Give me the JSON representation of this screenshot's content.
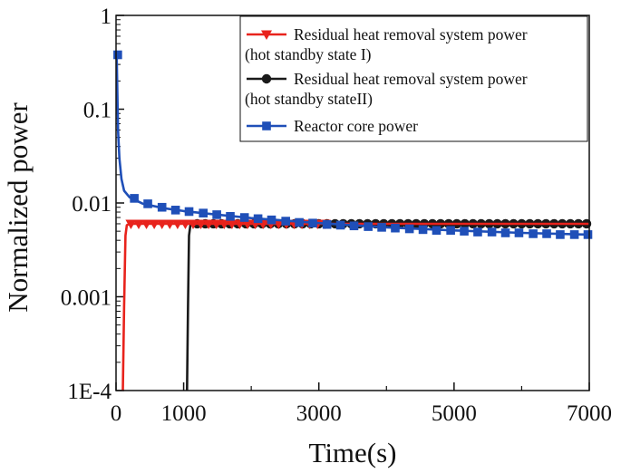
{
  "chart_data": {
    "type": "line",
    "xlabel": "Time(s)",
    "ylabel": "Normalized power",
    "xlim": [
      0,
      7000
    ],
    "ylim": [
      0.0001,
      1
    ],
    "yscale": "log",
    "grid": false,
    "legend_position": "top-right",
    "x_ticks": [
      0,
      1000,
      3000,
      5000,
      7000
    ],
    "x_tick_labels": [
      "0",
      "1000",
      "3000",
      "5000",
      "7000"
    ],
    "y_ticks": [
      0.0001,
      0.001,
      0.01,
      0.1,
      1
    ],
    "y_tick_labels": [
      "1E-4",
      "0.001",
      "0.01",
      "0.1",
      "1"
    ],
    "series": [
      {
        "name_lines": [
          "Residual heat removal system power",
          "(hot standby state I)"
        ],
        "color": "#e8231c",
        "marker": "triangle-down",
        "line": [
          [
            100,
            0.0001
          ],
          [
            120,
            0.0008
          ],
          [
            140,
            0.0045
          ],
          [
            160,
            0.0058
          ],
          [
            200,
            0.006
          ],
          [
            7000,
            0.006
          ]
        ],
        "markers": [
          [
            220,
            0.006
          ],
          [
            335,
            0.006
          ],
          [
            450,
            0.006
          ],
          [
            565,
            0.006
          ],
          [
            680,
            0.006
          ],
          [
            795,
            0.006
          ],
          [
            910,
            0.006
          ],
          [
            1025,
            0.006
          ],
          [
            1140,
            0.006
          ],
          [
            1255,
            0.006
          ],
          [
            1370,
            0.006
          ],
          [
            1485,
            0.006
          ],
          [
            1600,
            0.006
          ],
          [
            1715,
            0.006
          ],
          [
            1830,
            0.006
          ],
          [
            1945,
            0.006
          ],
          [
            2060,
            0.006
          ],
          [
            2175,
            0.006
          ],
          [
            2290,
            0.006
          ],
          [
            2405,
            0.006
          ],
          [
            2520,
            0.006
          ],
          [
            2635,
            0.006
          ],
          [
            2750,
            0.006
          ],
          [
            2865,
            0.006
          ],
          [
            2980,
            0.006
          ],
          [
            3095,
            0.006
          ]
        ]
      },
      {
        "name_lines": [
          "Residual heat removal system power",
          "(hot standby stateII)"
        ],
        "color": "#1a1a1a",
        "marker": "circle",
        "line": [
          [
            1050,
            0.0001
          ],
          [
            1065,
            0.0008
          ],
          [
            1080,
            0.0045
          ],
          [
            1100,
            0.0058
          ],
          [
            1150,
            0.006
          ],
          [
            7000,
            0.006
          ]
        ],
        "markers": [
          [
            1200,
            0.006
          ],
          [
            1320,
            0.006
          ],
          [
            1440,
            0.006
          ],
          [
            1560,
            0.006
          ],
          [
            1680,
            0.006
          ],
          [
            1800,
            0.006
          ],
          [
            1920,
            0.006
          ],
          [
            2040,
            0.006
          ],
          [
            2160,
            0.006
          ],
          [
            2280,
            0.006
          ],
          [
            2400,
            0.006
          ],
          [
            2520,
            0.006
          ],
          [
            2640,
            0.006
          ],
          [
            2760,
            0.006
          ],
          [
            2880,
            0.006
          ],
          [
            3000,
            0.006
          ],
          [
            3120,
            0.006
          ],
          [
            3240,
            0.006
          ],
          [
            3360,
            0.006
          ],
          [
            3480,
            0.006
          ],
          [
            3600,
            0.006
          ],
          [
            3720,
            0.006
          ],
          [
            3840,
            0.006
          ],
          [
            3960,
            0.006
          ],
          [
            4080,
            0.006
          ],
          [
            4200,
            0.006
          ],
          [
            4320,
            0.006
          ],
          [
            4440,
            0.006
          ],
          [
            4560,
            0.006
          ],
          [
            4680,
            0.006
          ],
          [
            4800,
            0.006
          ],
          [
            4920,
            0.006
          ],
          [
            5040,
            0.006
          ],
          [
            5160,
            0.006
          ],
          [
            5280,
            0.006
          ],
          [
            5400,
            0.006
          ],
          [
            5520,
            0.006
          ],
          [
            5640,
            0.006
          ],
          [
            5760,
            0.006
          ],
          [
            5880,
            0.006
          ],
          [
            6000,
            0.006
          ],
          [
            6120,
            0.006
          ],
          [
            6240,
            0.006
          ],
          [
            6360,
            0.006
          ],
          [
            6480,
            0.006
          ],
          [
            6600,
            0.006
          ],
          [
            6720,
            0.006
          ],
          [
            6840,
            0.006
          ],
          [
            6960,
            0.006
          ]
        ]
      },
      {
        "name": "Reactor core power",
        "color": "#1f4fb8",
        "marker": "square",
        "line": [
          [
            10,
            0.38
          ],
          [
            30,
            0.06
          ],
          [
            50,
            0.03
          ],
          [
            80,
            0.018
          ],
          [
            120,
            0.0135
          ],
          [
            200,
            0.0115
          ],
          [
            400,
            0.0098
          ],
          [
            700,
            0.0088
          ],
          [
            1000,
            0.0082
          ],
          [
            1500,
            0.0075
          ],
          [
            2000,
            0.0069
          ],
          [
            3000,
            0.0061
          ],
          [
            4000,
            0.0055
          ],
          [
            5000,
            0.0051
          ],
          [
            6000,
            0.0048
          ],
          [
            7000,
            0.0046
          ]
        ],
        "markers": [
          [
            25,
            0.38
          ],
          [
            270,
            0.0112
          ],
          [
            470,
            0.0098
          ],
          [
            680,
            0.009
          ],
          [
            880,
            0.0084
          ],
          [
            1080,
            0.0081
          ],
          [
            1290,
            0.0078
          ],
          [
            1490,
            0.0075
          ],
          [
            1690,
            0.0072
          ],
          [
            1900,
            0.007
          ],
          [
            2100,
            0.0068
          ],
          [
            2300,
            0.0066
          ],
          [
            2510,
            0.0064
          ],
          [
            2710,
            0.0062
          ],
          [
            2910,
            0.0061
          ],
          [
            3120,
            0.0059
          ],
          [
            3320,
            0.0058
          ],
          [
            3520,
            0.0057
          ],
          [
            3730,
            0.0056
          ],
          [
            3930,
            0.0055
          ],
          [
            4130,
            0.0054
          ],
          [
            4340,
            0.0053
          ],
          [
            4540,
            0.0052
          ],
          [
            4740,
            0.0051
          ],
          [
            4950,
            0.0051
          ],
          [
            5150,
            0.005
          ],
          [
            5350,
            0.0049
          ],
          [
            5560,
            0.0049
          ],
          [
            5760,
            0.0048
          ],
          [
            5960,
            0.0048
          ],
          [
            6170,
            0.0047
          ],
          [
            6370,
            0.0047
          ],
          [
            6570,
            0.0046
          ],
          [
            6780,
            0.0046
          ],
          [
            6980,
            0.0046
          ]
        ]
      }
    ]
  }
}
